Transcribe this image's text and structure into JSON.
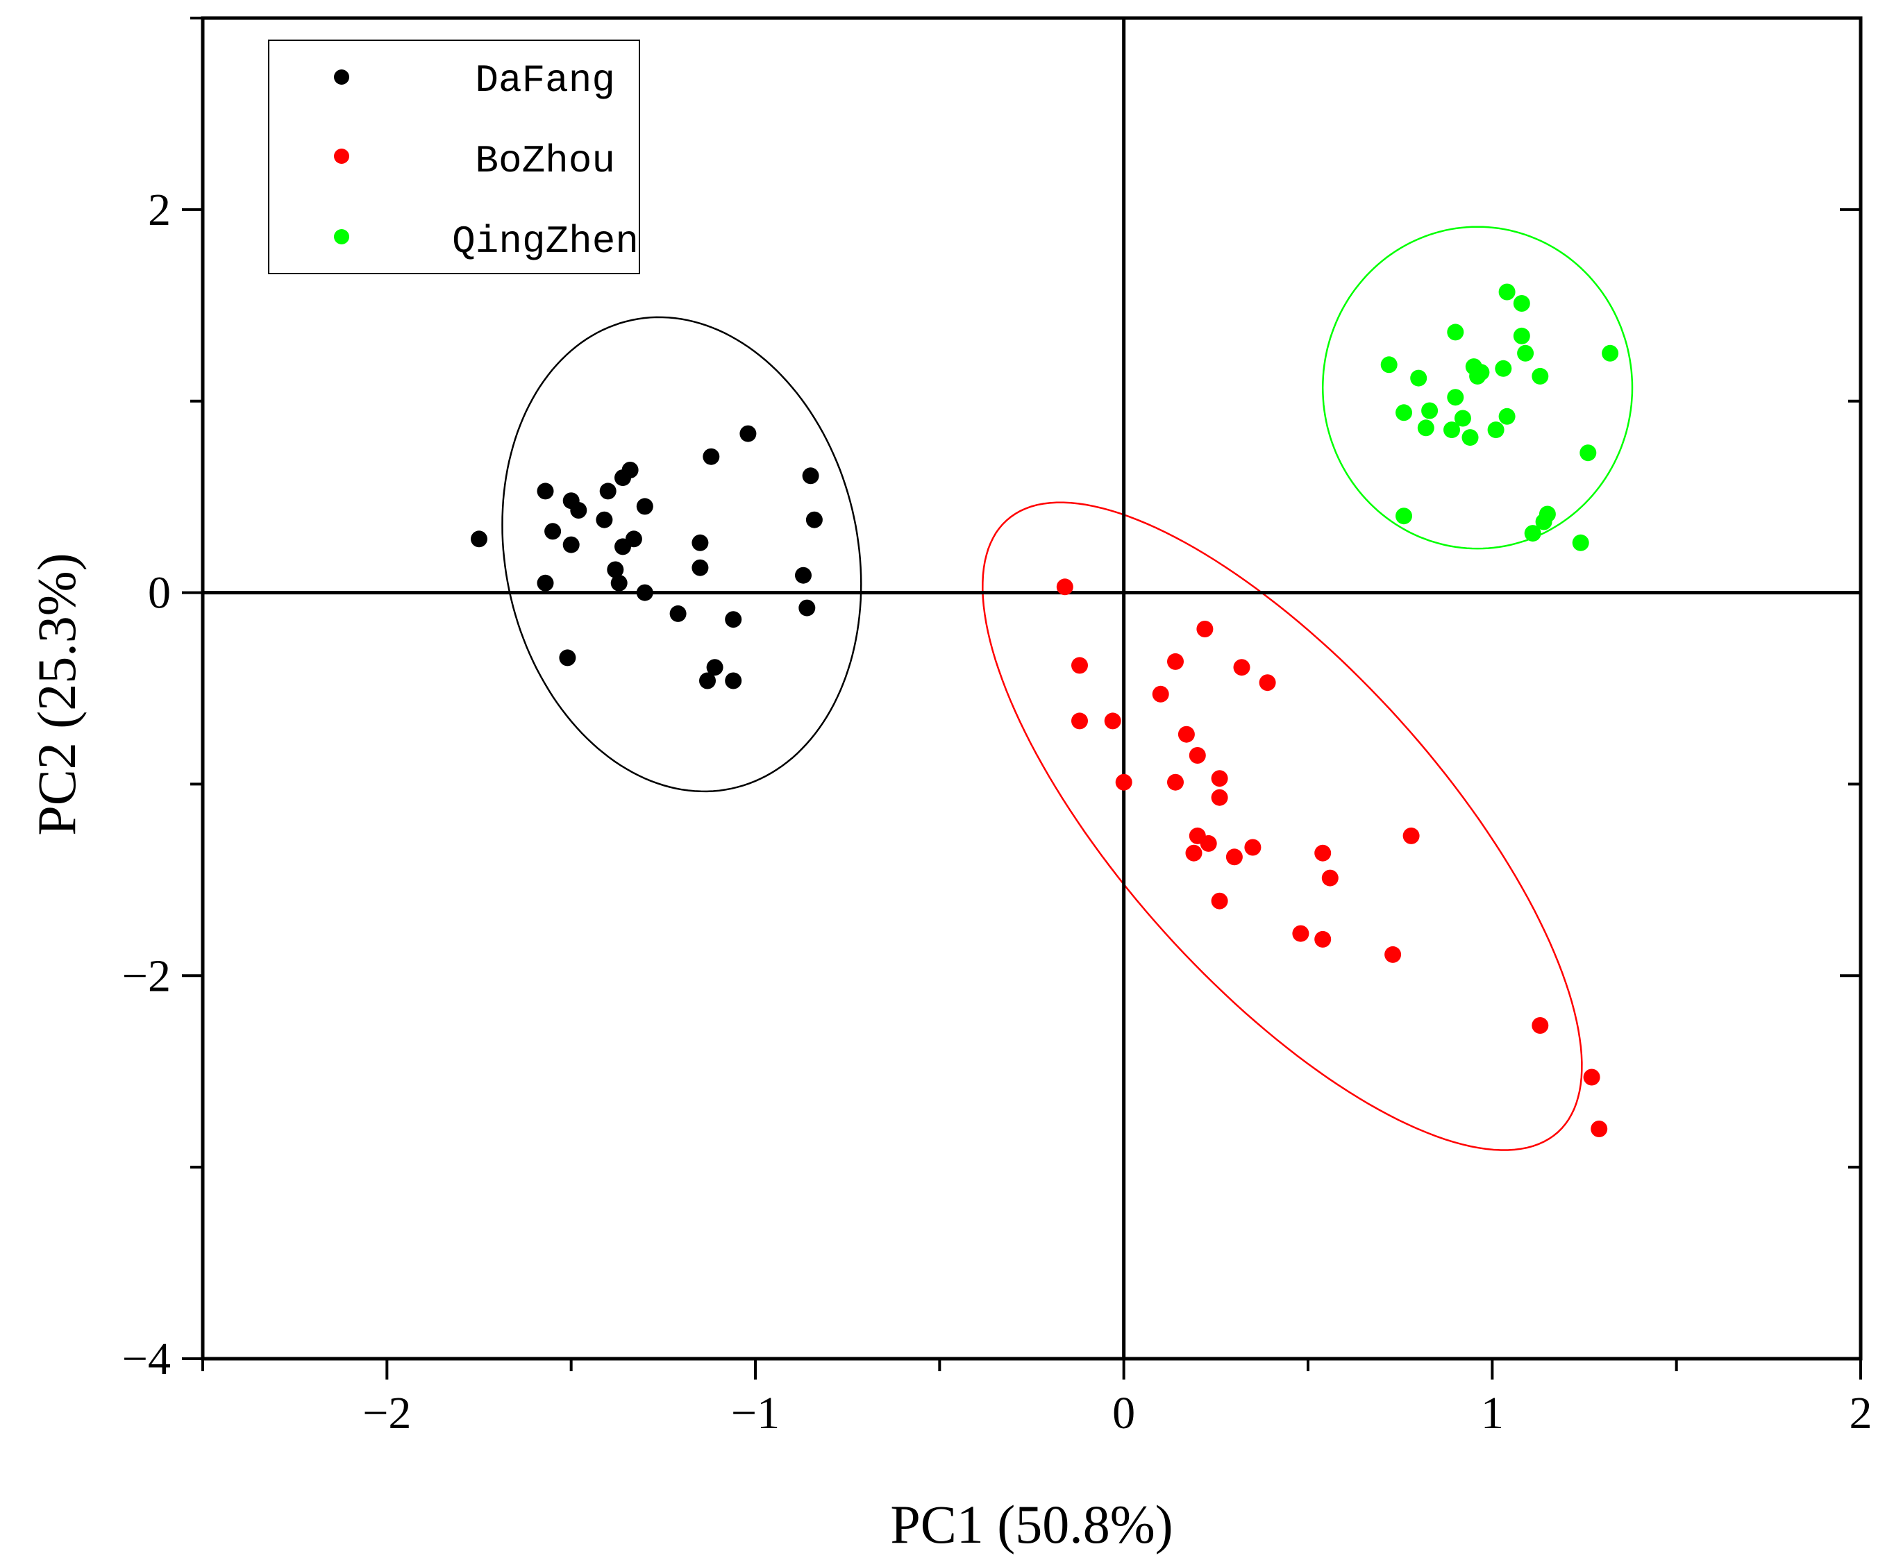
{
  "chart_data": {
    "type": "scatter",
    "title": "",
    "xlabel": "PC1 (50.8%)",
    "ylabel": "PC2 (25.3%)",
    "xlim": [
      -2.5,
      2
    ],
    "ylim": [
      -4,
      3
    ],
    "x_ticks": [
      {
        "value": -2,
        "label": "−2"
      },
      {
        "value": -1,
        "label": "−1"
      },
      {
        "value": 0,
        "label": "0"
      },
      {
        "value": 1,
        "label": "1"
      },
      {
        "value": 2,
        "label": "2"
      }
    ],
    "y_ticks": [
      {
        "value": -4,
        "label": "−4"
      },
      {
        "value": -2,
        "label": "−2"
      },
      {
        "value": 0,
        "label": "0"
      },
      {
        "value": 2,
        "label": "2"
      }
    ],
    "legend_position": "top-left",
    "reference_lines": {
      "x": 0,
      "y": 0
    },
    "series": [
      {
        "name": "DaFang",
        "color": "#000000",
        "ellipse": {
          "cx": -1.2,
          "cy": 0.2,
          "rx": 0.65,
          "ry": 0.92,
          "rotation_deg": 78
        },
        "points": [
          [
            -1.75,
            0.28
          ],
          [
            -1.57,
            0.53
          ],
          [
            -1.55,
            0.32
          ],
          [
            -1.5,
            0.48
          ],
          [
            -1.48,
            0.43
          ],
          [
            -1.5,
            0.25
          ],
          [
            -1.41,
            0.38
          ],
          [
            -1.4,
            0.53
          ],
          [
            -1.36,
            0.6
          ],
          [
            -1.34,
            0.64
          ],
          [
            -1.3,
            0.45
          ],
          [
            -1.33,
            0.28
          ],
          [
            -1.36,
            0.24
          ],
          [
            -1.38,
            0.12
          ],
          [
            -1.37,
            0.05
          ],
          [
            -1.57,
            0.05
          ],
          [
            -1.51,
            -0.34
          ],
          [
            -1.3,
            0.0
          ],
          [
            -1.21,
            -0.11
          ],
          [
            -1.15,
            0.26
          ],
          [
            -1.15,
            0.13
          ],
          [
            -1.12,
            0.71
          ],
          [
            -1.02,
            0.83
          ],
          [
            -0.85,
            0.61
          ],
          [
            -0.84,
            0.38
          ],
          [
            -0.87,
            0.09
          ],
          [
            -0.86,
            -0.08
          ],
          [
            -1.06,
            -0.14
          ],
          [
            -1.11,
            -0.39
          ],
          [
            -1.13,
            -0.46
          ],
          [
            -1.06,
            -0.46
          ]
        ]
      },
      {
        "name": "BoZhou",
        "color": "#ff0000",
        "ellipse": {
          "cx": 0.43,
          "cy": -1.22,
          "rx": 0.43,
          "ry": 2.15,
          "rotation_deg": -42
        },
        "points": [
          [
            -0.16,
            0.03
          ],
          [
            -0.12,
            -0.38
          ],
          [
            -0.12,
            -0.67
          ],
          [
            -0.03,
            -0.67
          ],
          [
            0.0,
            -0.99
          ],
          [
            0.1,
            -0.53
          ],
          [
            0.14,
            -0.36
          ],
          [
            0.14,
            -0.99
          ],
          [
            0.17,
            -0.74
          ],
          [
            0.2,
            -0.85
          ],
          [
            0.22,
            -0.19
          ],
          [
            0.26,
            -0.97
          ],
          [
            0.26,
            -1.07
          ],
          [
            0.2,
            -1.27
          ],
          [
            0.23,
            -1.31
          ],
          [
            0.19,
            -1.36
          ],
          [
            0.26,
            -1.61
          ],
          [
            0.3,
            -1.38
          ],
          [
            0.35,
            -1.33
          ],
          [
            0.32,
            -0.39
          ],
          [
            0.39,
            -0.47
          ],
          [
            0.48,
            -1.78
          ],
          [
            0.54,
            -1.81
          ],
          [
            0.54,
            -1.36
          ],
          [
            0.56,
            -1.49
          ],
          [
            0.73,
            -1.89
          ],
          [
            0.78,
            -1.27
          ],
          [
            1.13,
            -2.26
          ],
          [
            1.27,
            -2.53
          ],
          [
            1.29,
            -2.8
          ]
        ]
      },
      {
        "name": "QingZhen",
        "color": "#00ff00",
        "ellipse": {
          "cx": 0.96,
          "cy": 1.07,
          "rx": 0.42,
          "ry": 0.84,
          "rotation_deg": 0
        },
        "points": [
          [
            0.72,
            1.19
          ],
          [
            0.8,
            1.12
          ],
          [
            0.76,
            0.94
          ],
          [
            0.82,
            0.86
          ],
          [
            0.83,
            0.95
          ],
          [
            0.89,
            0.85
          ],
          [
            0.9,
            1.02
          ],
          [
            0.9,
            1.36
          ],
          [
            0.92,
            0.91
          ],
          [
            0.94,
            0.81
          ],
          [
            0.95,
            1.18
          ],
          [
            0.96,
            1.13
          ],
          [
            0.97,
            1.15
          ],
          [
            1.01,
            0.85
          ],
          [
            1.03,
            1.17
          ],
          [
            1.04,
            0.92
          ],
          [
            1.04,
            1.57
          ],
          [
            1.08,
            1.51
          ],
          [
            1.08,
            1.34
          ],
          [
            1.09,
            1.25
          ],
          [
            1.13,
            1.13
          ],
          [
            1.11,
            0.31
          ],
          [
            1.14,
            0.37
          ],
          [
            1.15,
            0.41
          ],
          [
            1.24,
            0.26
          ],
          [
            1.26,
            0.73
          ],
          [
            1.32,
            1.25
          ],
          [
            0.76,
            0.4
          ]
        ]
      }
    ]
  }
}
